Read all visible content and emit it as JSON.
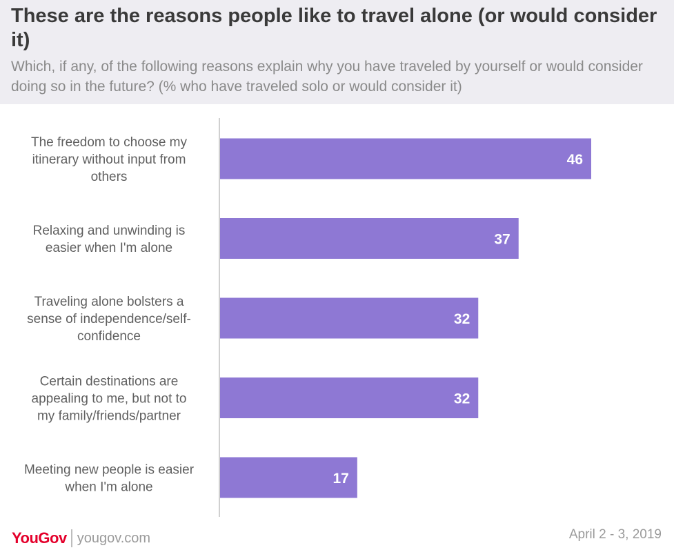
{
  "header": {
    "title": "These are the reasons people like to travel alone (or would consider it)",
    "subtitle": "Which, if any, of the following reasons explain why you have traveled by yourself or would consider doing so in the future? (% who have traveled solo or would consider it)"
  },
  "chart_data": {
    "type": "bar",
    "orientation": "horizontal",
    "title": "These are the reasons people like to travel alone (or would consider it)",
    "categories": [
      [
        "The freedom to choose my",
        "itinerary without input from",
        "others"
      ],
      [
        "Relaxing and unwinding is",
        "easier when I'm alone"
      ],
      [
        "Traveling alone bolsters a",
        "sense of independence/self-",
        "confidence"
      ],
      [
        "Certain destinations are",
        "appealing to me, but not to",
        "my family/friends/partner"
      ],
      [
        "Meeting new people is easier",
        "when I'm alone"
      ]
    ],
    "values": [
      46,
      37,
      32,
      32,
      17
    ],
    "xlim": [
      0,
      55
    ],
    "bar_color": "#8e78d4",
    "label_color": "#ffffff",
    "grid": false
  },
  "footer": {
    "brand": "YouGov",
    "url": "yougov.com",
    "date": "April 2 - 3, 2019",
    "brand_color": "#e4002b"
  }
}
